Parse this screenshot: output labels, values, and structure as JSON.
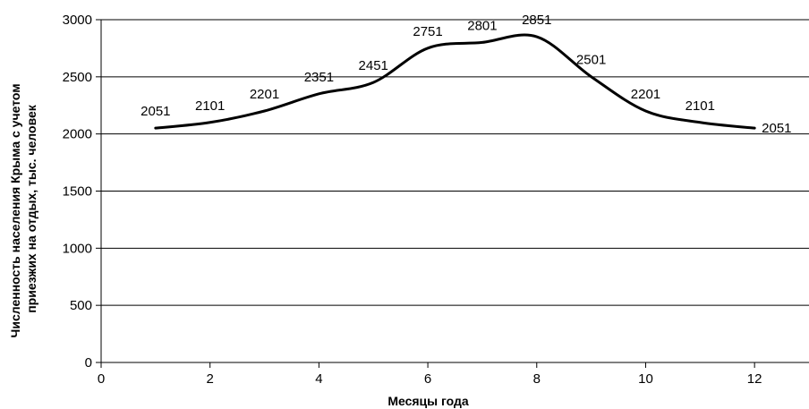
{
  "chart_data": {
    "type": "line",
    "title": "",
    "xlabel": "Месяцы года",
    "ylabel_lines": [
      "Численность населения Крыма с учетом",
      "приезжих на отдых, тыс. человек"
    ],
    "xlim": [
      0,
      13
    ],
    "ylim": [
      0,
      3000
    ],
    "x_ticks": [
      0,
      2,
      4,
      6,
      8,
      10,
      12
    ],
    "y_ticks": [
      0,
      500,
      1000,
      1500,
      2000,
      2500,
      3000
    ],
    "grid": "horizontal",
    "smooth": true,
    "series": [
      {
        "x": [
          1,
          2,
          3,
          4,
          5,
          6,
          7,
          8,
          9,
          10,
          11,
          12
        ],
        "values": [
          2051,
          2101,
          2201,
          2351,
          2451,
          2751,
          2801,
          2851,
          2501,
          2201,
          2101,
          2051
        ],
        "labels": [
          "2051",
          "2101",
          "2201",
          "2351",
          "2451",
          "2751",
          "2801",
          "2851",
          "2501",
          "2201",
          "2101",
          "2051"
        ]
      }
    ]
  }
}
